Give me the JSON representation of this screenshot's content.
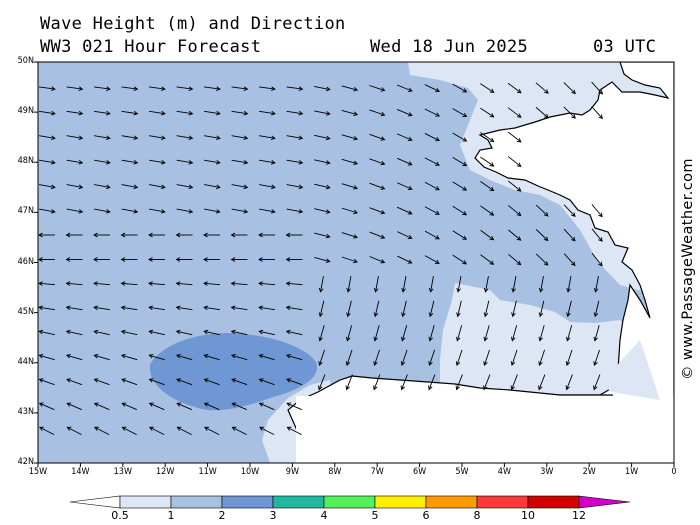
{
  "title": {
    "line1": "Wave Height (m) and Direction",
    "model": "WW3 021 Hour Forecast",
    "date": "Wed 18 Jun 2025",
    "time": "03 UTC"
  },
  "credit": "© www.PassageWeather.com",
  "map": {
    "lat_labels": [
      "50N",
      "49N",
      "48N",
      "47N",
      "46N",
      "45N",
      "44N",
      "43N",
      "42N"
    ],
    "lon_labels": [
      "15W",
      "14W",
      "13W",
      "12W",
      "11W",
      "10W",
      "9W",
      "8W",
      "7W",
      "6W",
      "5W",
      "4W",
      "3W",
      "2W",
      "1W",
      "0"
    ],
    "lat_range": [
      42,
      50
    ],
    "lon_range": [
      -15,
      0
    ],
    "colors": {
      "sea_low": "#dde6f4",
      "sea_mid": "#a8c0e2",
      "sea_high": "#6f97d3",
      "land": "#ffffff",
      "coast": "#000000",
      "arrow": "#000000"
    }
  },
  "legend": {
    "labels": [
      "0.5",
      "1",
      "2",
      "3",
      "4",
      "5",
      "6",
      "8",
      "10",
      "12"
    ],
    "colors": [
      "#ffffff",
      "#dde6f4",
      "#a8c0e2",
      "#6f97d3",
      "#20b9a0",
      "#52f05a",
      "#fff000",
      "#ff9a00",
      "#ff3838",
      "#d00000",
      "#d000c8"
    ]
  }
}
